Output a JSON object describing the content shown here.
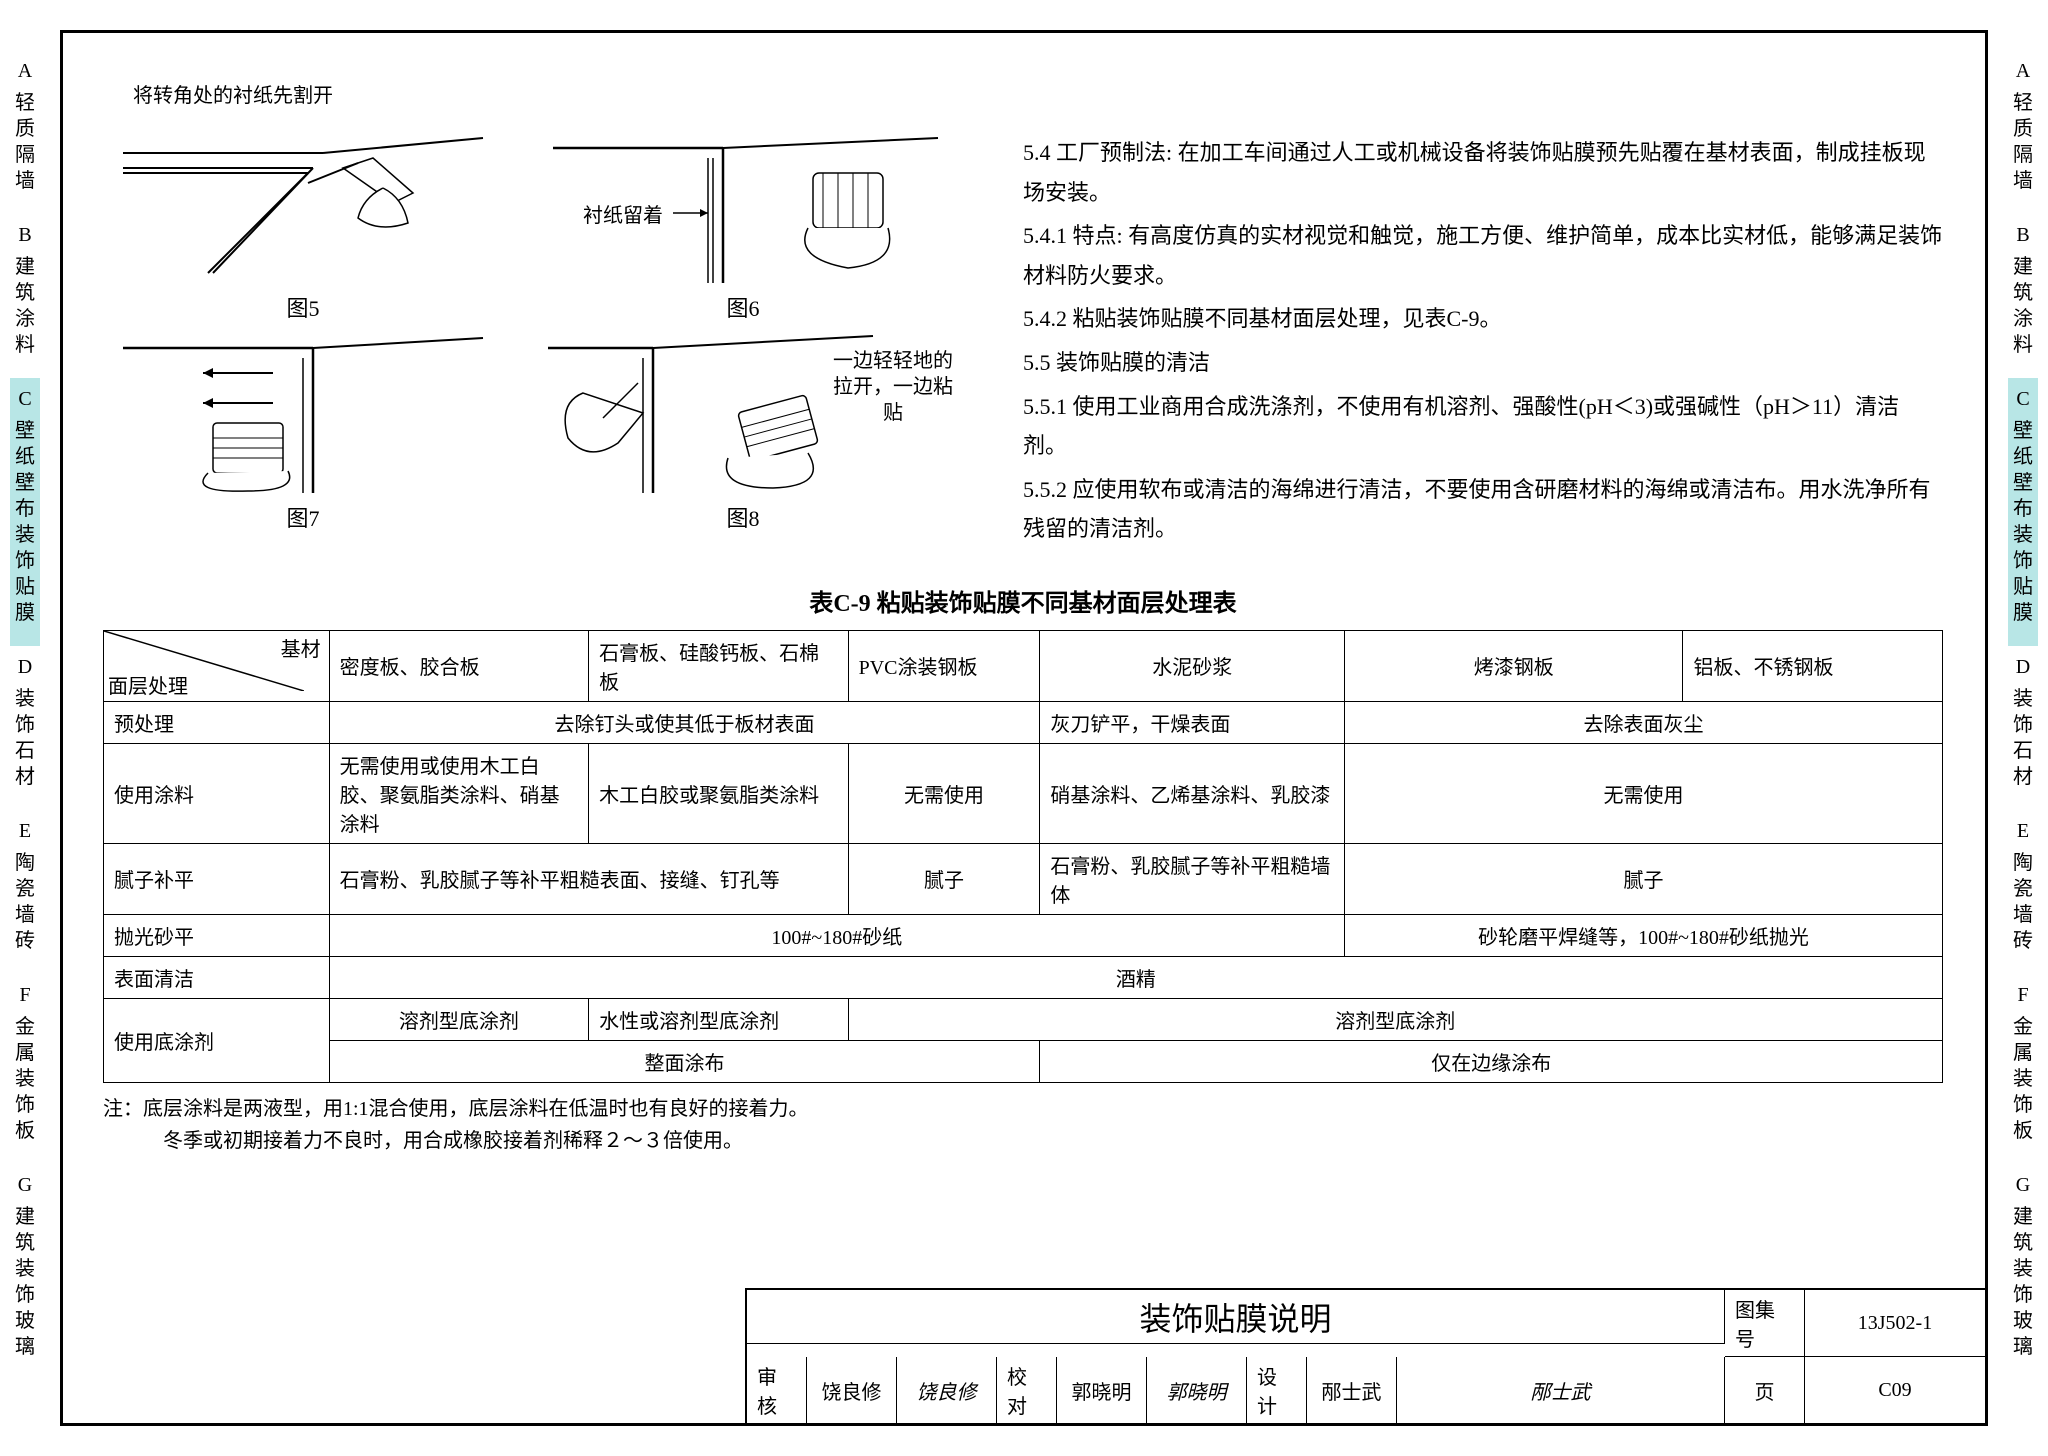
{
  "tabs": [
    {
      "letter": "A",
      "label": "轻质隔墙",
      "active": false
    },
    {
      "letter": "B",
      "label": "建筑涂料",
      "active": false
    },
    {
      "letter": "C",
      "label": "壁纸壁布装饰贴膜",
      "active": true
    },
    {
      "letter": "D",
      "label": "装饰石材",
      "active": false
    },
    {
      "letter": "E",
      "label": "陶瓷墙砖",
      "active": false
    },
    {
      "letter": "F",
      "label": "金属装饰板",
      "active": false
    },
    {
      "letter": "G",
      "label": "建筑装饰玻璃",
      "active": false
    }
  ],
  "figures": {
    "fig5": {
      "label": "图5",
      "annotation": "将转角处的衬纸先割开"
    },
    "fig6": {
      "label": "图6",
      "annotation": "衬纸留着"
    },
    "fig7": {
      "label": "图7"
    },
    "fig8": {
      "label": "图8",
      "annotation": "一边轻轻地的拉开，一边粘贴"
    }
  },
  "paragraphs": [
    "5.4  工厂预制法: 在加工车间通过人工或机械设备将装饰贴膜预先贴覆在基材表面，制成挂板现场安装。",
    "5.4.1 特点:  有高度仿真的实材视觉和触觉，施工方便、维护简单，成本比实材低，能够满足装饰材料防火要求。",
    "5.4.2 粘贴装饰贴膜不同基材面层处理，见表C-9。",
    "5.5 装饰贴膜的清洁",
    "5.5.1 使用工业商用合成洗涤剂，不使用有机溶剂、强酸性(pH＜3)或强碱性（pH＞11）清洁剂。",
    "5.5.2 应使用软布或清洁的海绵进行清洁，不要使用含研磨材料的海绵或清洁布。用水洗净所有残留的清洁剂。"
  ],
  "table": {
    "title": "表C-9  粘贴装饰贴膜不同基材面层处理表",
    "diag": {
      "top": "基材",
      "bottom": "面层处理"
    },
    "headers": [
      "密度板、胶合板",
      "石膏板、硅酸钙板、石棉板",
      "PVC涂装钢板",
      "水泥砂浆",
      "烤漆钢板",
      "铝板、不锈钢板"
    ],
    "rows": [
      {
        "label": "预处理",
        "cells": [
          {
            "text": "去除钉头或使其低于板材表面",
            "span": 3,
            "align": "center"
          },
          {
            "text": "灰刀铲平，干燥表面",
            "span": 1
          },
          {
            "text": "去除表面灰尘",
            "span": 2,
            "align": "center"
          }
        ]
      },
      {
        "label": "使用涂料",
        "cells": [
          {
            "text": "无需使用或使用木工白胶、聚氨脂类涂料、硝基涂料",
            "span": 1
          },
          {
            "text": "木工白胶或聚氨脂类涂料",
            "span": 1
          },
          {
            "text": "无需使用",
            "span": 1,
            "align": "center"
          },
          {
            "text": "硝基涂料、乙烯基涂料、乳胶漆",
            "span": 1
          },
          {
            "text": "无需使用",
            "span": 2,
            "align": "center"
          }
        ]
      },
      {
        "label": "腻子补平",
        "cells": [
          {
            "text": "石膏粉、乳胶腻子等补平粗糙表面、接缝、钉孔等",
            "span": 2
          },
          {
            "text": "腻子",
            "span": 1,
            "align": "center"
          },
          {
            "text": "石膏粉、乳胶腻子等补平粗糙墙体",
            "span": 1
          },
          {
            "text": "腻子",
            "span": 2,
            "align": "center"
          }
        ]
      },
      {
        "label": "抛光砂平",
        "cells": [
          {
            "text": "100#~180#砂纸",
            "span": 4,
            "align": "center"
          },
          {
            "text": "砂轮磨平焊缝等，100#~180#砂纸抛光",
            "span": 2,
            "align": "center"
          }
        ]
      },
      {
        "label": "表面清洁",
        "cells": [
          {
            "text": "酒精",
            "span": 6,
            "align": "center"
          }
        ]
      },
      {
        "label": "使用底涂剂",
        "sublabel": true,
        "cells": [
          {
            "text": "溶剂型底涂剂",
            "span": 1,
            "align": "center"
          },
          {
            "text": "水性或溶剂型底涂剂",
            "span": 1
          },
          {
            "text": "溶剂型底涂剂",
            "span": 4,
            "align": "center"
          }
        ]
      },
      {
        "label": "",
        "cells": [
          {
            "text": "整面涂布",
            "span": 3,
            "align": "center"
          },
          {
            "text": "仅在边缘涂布",
            "span": 3,
            "align": "center"
          }
        ]
      }
    ],
    "note": "注：底层涂料是两液型，用1:1混合使用，底层涂料在低温时也有良好的接着力。\n　　　冬季或初期接着力不良时，用合成橡胶接着剂稀释２～３倍使用。"
  },
  "titleBlock": {
    "title": "装饰贴膜说明",
    "atlas_label": "图集号",
    "atlas": "13J502-1",
    "page_label": "页",
    "page": "C09",
    "review_label": "审核",
    "review_name": "饶良修",
    "review_sig": "饶良修",
    "check_label": "校对",
    "check_name": "郭晓明",
    "check_sig": "郭晓明",
    "design_label": "设计",
    "design_name": "邴士武",
    "design_sig": "邴士武"
  },
  "colors": {
    "active_tab": "#b8e6e6",
    "border": "#000000",
    "bg": "#ffffff"
  }
}
